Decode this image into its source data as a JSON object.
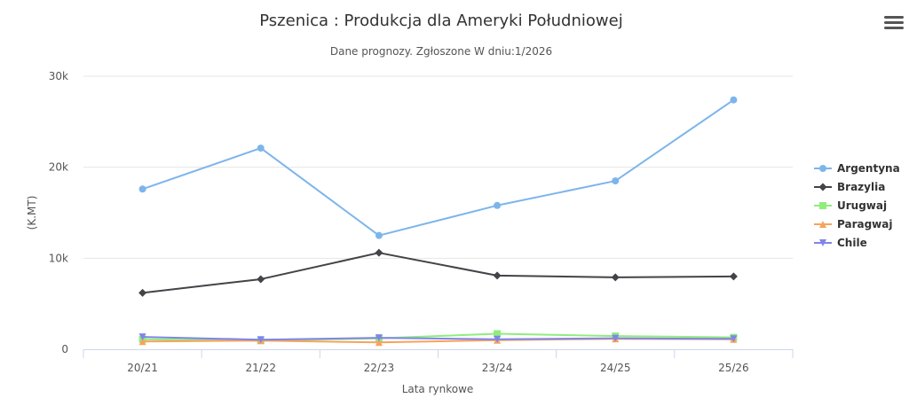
{
  "chart_data": {
    "type": "line",
    "title": "Pszenica : Produkcja dla Ameryki Południowej",
    "subtitle": "Dane prognozy. Zgłoszone W dniu:1/2026",
    "xlabel": "Lata rynkowe",
    "ylabel": "(K.MT)",
    "categories": [
      "20/21",
      "21/22",
      "22/23",
      "23/24",
      "24/25",
      "25/26"
    ],
    "ylim": [
      0,
      30000
    ],
    "yticks": [
      {
        "value": 0,
        "label": "0"
      },
      {
        "value": 10000,
        "label": "10k"
      },
      {
        "value": 20000,
        "label": "20k"
      },
      {
        "value": 30000,
        "label": "30k"
      }
    ],
    "grid": true,
    "legend_position": "right",
    "series": [
      {
        "name": "Argentyna",
        "color": "#7cb5ec",
        "marker": "circle",
        "values": [
          17600,
          22100,
          12500,
          15800,
          18500,
          27400
        ]
      },
      {
        "name": "Brazylia",
        "color": "#434348",
        "marker": "diamond",
        "values": [
          6200,
          7700,
          10600,
          8100,
          7900,
          8000
        ]
      },
      {
        "name": "Urugwaj",
        "color": "#90ed7d",
        "marker": "square",
        "values": [
          1100,
          950,
          1200,
          1700,
          1450,
          1300
        ]
      },
      {
        "name": "Paragwaj",
        "color": "#f7a35c",
        "marker": "triangle",
        "values": [
          850,
          950,
          750,
          1000,
          1150,
          1100
        ]
      },
      {
        "name": "Chile",
        "color": "#8085e9",
        "marker": "triangle-down",
        "values": [
          1350,
          1050,
          1250,
          1100,
          1200,
          1150
        ]
      }
    ]
  },
  "menu": {
    "icon": "hamburger-menu-icon"
  }
}
